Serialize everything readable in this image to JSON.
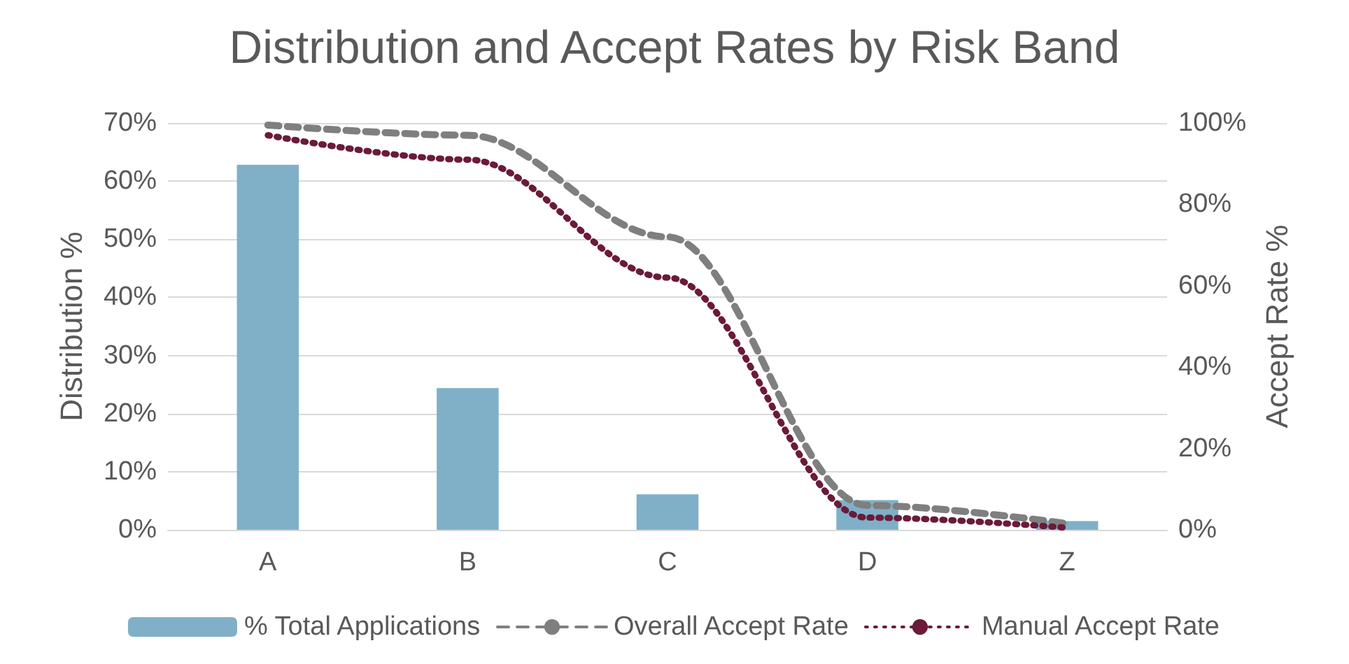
{
  "chart_data": {
    "type": "bar",
    "title": "Distribution and Accept Rates by Risk Band",
    "ylabel": "Distribution %",
    "y2label": "Accept Rate %",
    "categories": [
      "A",
      "B",
      "C",
      "D",
      "Z"
    ],
    "series": [
      {
        "name": "% Total Applications",
        "color": "#7fb0c8",
        "values": [
          62.8,
          24.4,
          6.1,
          5.1,
          1.5
        ]
      },
      {
        "name": "Overall Accept Rate",
        "type": "line",
        "axis": "y2",
        "color": "#7f7f7f",
        "line_style": "dashed",
        "values": [
          99.5,
          97,
          72,
          6,
          1.5
        ]
      },
      {
        "name": "Manual Accept Rate",
        "type": "line",
        "axis": "y2",
        "color": "#6b1a3a",
        "line_style": "dotted",
        "values": [
          97,
          91,
          62,
          3,
          0.5
        ]
      }
    ],
    "ylim": [
      0,
      70
    ],
    "yticks": [
      {
        "value": 0,
        "label": "0%"
      },
      {
        "value": 10,
        "label": "10%"
      },
      {
        "value": 20,
        "label": "20%"
      },
      {
        "value": 30,
        "label": "30%"
      },
      {
        "value": 40,
        "label": "40%"
      },
      {
        "value": 50,
        "label": "50%"
      },
      {
        "value": 60,
        "label": "60%"
      },
      {
        "value": 70,
        "label": "70%"
      }
    ],
    "y2lim": [
      0,
      100
    ],
    "y2ticks": [
      {
        "value": 0,
        "label": "0%"
      },
      {
        "value": 20,
        "label": "20%"
      },
      {
        "value": 40,
        "label": "40%"
      },
      {
        "value": 60,
        "label": "60%"
      },
      {
        "value": 80,
        "label": "80%"
      },
      {
        "value": 100,
        "label": "100%"
      }
    ],
    "grid": "y",
    "legend": "bottom",
    "marker": "none"
  }
}
